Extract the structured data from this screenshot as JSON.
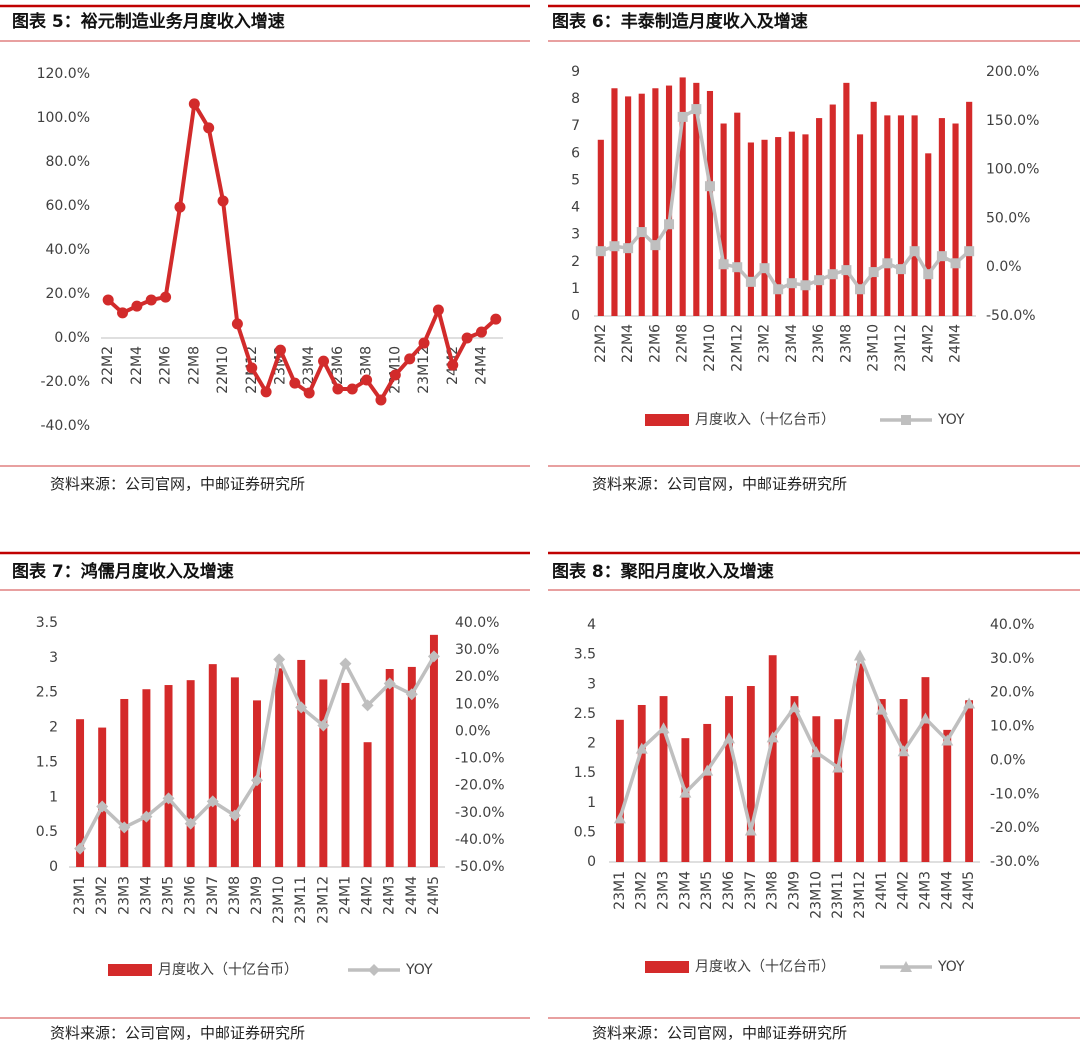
{
  "chart_data": [
    {
      "type": "line",
      "title": "图表 5：裕元制造业务月度收入增速",
      "source": "资料来源：公司官网，中邮证券研究所",
      "categories": [
        "22M2",
        null,
        "22M4",
        null,
        "22M6",
        null,
        "22M8",
        null,
        "22M10",
        null,
        "22M12",
        null,
        "23M2",
        null,
        "23M4",
        null,
        "23M6",
        null,
        "23M8",
        null,
        "23M10",
        null,
        "23M12",
        null,
        "24M2",
        null,
        "24M4",
        null
      ],
      "values": [
        17.3,
        11.4,
        14.5,
        17.3,
        18.6,
        59.5,
        106.4,
        95.5,
        62.3,
        6.4,
        -13.6,
        -24.5,
        -5.5,
        -20.5,
        -25,
        -10.5,
        -23.2,
        -23.2,
        -19.1,
        -28.2,
        -16.8,
        -9.5,
        -2.3,
        12.7,
        -12.3,
        0,
        2.7,
        8.6
      ],
      "color": "#d22b2b",
      "marker": "circle",
      "ylim": [
        -40,
        120
      ],
      "yticks": [
        {
          "value": -40,
          "label": "-40.0%"
        },
        {
          "value": -20,
          "label": "-20.0%"
        },
        {
          "value": 0,
          "label": "0.0%"
        },
        {
          "value": 20,
          "label": "20.0%"
        },
        {
          "value": 40,
          "label": "40.0%"
        },
        {
          "value": 60,
          "label": "60.0%"
        },
        {
          "value": 80,
          "label": "80.0%"
        },
        {
          "value": 100,
          "label": "100.0%"
        },
        {
          "value": 120,
          "label": "120.0%"
        }
      ]
    },
    {
      "type": "combo",
      "title": "图表 6：丰泰制造月度收入及增速",
      "source": "资料来源：公司官网，中邮证券研究所",
      "categories": [
        "22M2",
        null,
        "22M4",
        null,
        "22M6",
        null,
        "22M8",
        null,
        "22M10",
        null,
        "22M12",
        null,
        "23M2",
        null,
        "23M4",
        null,
        "23M6",
        null,
        "23M8",
        null,
        "23M10",
        null,
        "23M12",
        null,
        "24M2",
        null,
        "24M4",
        null
      ],
      "series": [
        {
          "name": "月度收入（十亿台币）",
          "type": "bar",
          "color": "#d42a2a",
          "values": [
            6.5,
            8.4,
            8.1,
            8.2,
            8.4,
            8.5,
            8.8,
            8.6,
            8.3,
            7.1,
            7.5,
            6.4,
            6.5,
            6.6,
            6.8,
            6.7,
            7.3,
            7.8,
            8.6,
            6.7,
            7.9,
            7.4,
            7.4,
            7.4,
            6.0,
            7.3,
            7.1,
            7.9
          ]
        },
        {
          "name": "YOY",
          "type": "line",
          "axis": "y2",
          "color": "#bfbfbf",
          "marker": "square",
          "values": [
            16.4,
            21.5,
            19.5,
            36,
            22.6,
            44,
            154,
            162,
            83,
            3,
            0,
            -15,
            -1,
            -22.6,
            -16.4,
            -18.5,
            -13.3,
            -7.2,
            -3,
            -22.6,
            -5,
            4,
            -2,
            16.4,
            -7.2,
            11.3,
            4,
            16.4
          ]
        }
      ],
      "ylim": [
        0,
        9
      ],
      "yticks": [
        0,
        1,
        2,
        3,
        4,
        5,
        6,
        7,
        8,
        9
      ],
      "y2lim": [
        -50,
        200
      ],
      "y2ticks": [
        {
          "value": -50,
          "label": "-50.0%"
        },
        {
          "value": 0,
          "label": "0.0%"
        },
        {
          "value": 50,
          "label": "50.0%"
        },
        {
          "value": 100,
          "label": "100.0%"
        },
        {
          "value": 150,
          "label": "150.0%"
        },
        {
          "value": 200,
          "label": "200.0%"
        }
      ]
    },
    {
      "type": "combo",
      "title": "图表 7：鸿儒月度收入及增速",
      "source": "资料来源：公司官网，中邮证券研究所",
      "categories": [
        "23M1",
        "23M2",
        "23M3",
        "23M4",
        "23M5",
        "23M6",
        "23M7",
        "23M8",
        "23M9",
        "23M10",
        "23M11",
        "23M12",
        "24M1",
        "24M2",
        "24M3",
        "24M4",
        "24M5"
      ],
      "series": [
        {
          "name": "月度收入（十亿台币）",
          "type": "bar",
          "color": "#d42a2a",
          "values": [
            2.12,
            2.0,
            2.41,
            2.55,
            2.61,
            2.68,
            2.91,
            2.72,
            2.39,
            2.85,
            2.97,
            2.69,
            2.64,
            1.79,
            2.84,
            2.87,
            3.33
          ]
        },
        {
          "name": "YOY",
          "type": "line",
          "axis": "y2",
          "color": "#bfbfbf",
          "marker": "diamond",
          "values": [
            -43.2,
            -27.7,
            -35.4,
            -31.4,
            -24.7,
            -34,
            -25.8,
            -31,
            -18,
            26.6,
            8.9,
            2.2,
            25,
            9.6,
            17.7,
            13.7,
            27.7
          ]
        }
      ],
      "ylim": [
        0,
        3.5
      ],
      "yticks": [
        0,
        0.5,
        1,
        1.5,
        2,
        2.5,
        3,
        3.5
      ],
      "y2lim": [
        -50,
        40
      ],
      "y2ticks": [
        {
          "value": -50,
          "label": "-50.0%"
        },
        {
          "value": -40,
          "label": "-40.0%"
        },
        {
          "value": -30,
          "label": "-30.0%"
        },
        {
          "value": -20,
          "label": "-20.0%"
        },
        {
          "value": -10,
          "label": "-10.0%"
        },
        {
          "value": 0,
          "label": "0.0%"
        },
        {
          "value": 10,
          "label": "10.0%"
        },
        {
          "value": 20,
          "label": "20.0%"
        },
        {
          "value": 30,
          "label": "30.0%"
        },
        {
          "value": 40,
          "label": "40.0%"
        }
      ]
    },
    {
      "type": "combo",
      "title": "图表 8：聚阳月度收入及增速",
      "source": "资料来源：公司官网，中邮证券研究所",
      "categories": [
        "23M1",
        "23M2",
        "23M3",
        "23M4",
        "23M5",
        "23M6",
        "23M7",
        "23M8",
        "23M9",
        "23M10",
        "23M11",
        "23M12",
        "24M1",
        "24M2",
        "24M3",
        "24M4",
        "24M5"
      ],
      "series": [
        {
          "name": "月度收入（十亿台币）",
          "type": "bar",
          "color": "#d42a2a",
          "values": [
            2.4,
            2.65,
            2.8,
            2.09,
            2.33,
            2.8,
            2.97,
            3.49,
            2.8,
            2.46,
            2.41,
            3.35,
            2.75,
            2.75,
            3.12,
            2.23,
            2.73
          ]
        },
        {
          "name": "YOY",
          "type": "line",
          "axis": "y2",
          "color": "#bfbfbf",
          "marker": "triangle",
          "values": [
            -17.1,
            3.5,
            9.5,
            -9.5,
            -3,
            6.5,
            -20.7,
            6.8,
            15.7,
            2.4,
            -2.1,
            31,
            15,
            2.7,
            12.4,
            5.9,
            16.8
          ]
        }
      ],
      "ylim": [
        0,
        4
      ],
      "yticks": [
        0,
        0.5,
        1,
        1.5,
        2,
        2.5,
        3,
        3.5,
        4
      ],
      "y2lim": [
        -30,
        40
      ],
      "y2ticks": [
        {
          "value": -30,
          "label": "-30.0%"
        },
        {
          "value": -20,
          "label": "-20.0%"
        },
        {
          "value": -10,
          "label": "-10.0%"
        },
        {
          "value": 0,
          "label": "0.0%"
        },
        {
          "value": 10,
          "label": "10.0%"
        },
        {
          "value": 20,
          "label": "20.0%"
        },
        {
          "value": 30,
          "label": "30.0%"
        },
        {
          "value": 40,
          "label": "40.0%"
        }
      ]
    }
  ]
}
